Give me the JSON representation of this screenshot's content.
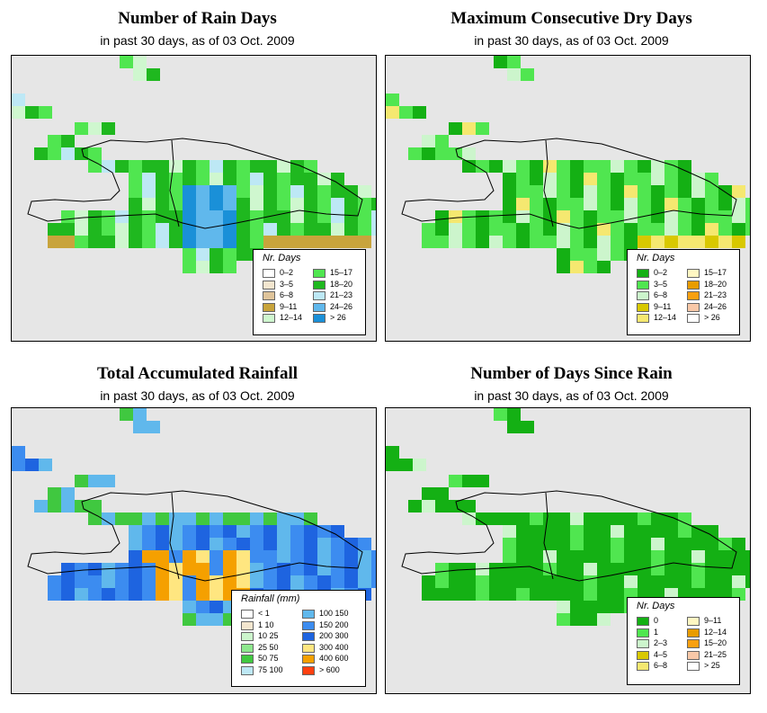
{
  "panels": [
    {
      "title": "Number of Rain Days",
      "subtitle": "in past 30 days, as of  03 Oct. 2009",
      "legend_title": "Nr. Days",
      "legend_items": [
        {
          "label": "0–2",
          "color": "#ffffff"
        },
        {
          "label": "3–5",
          "color": "#f3e6cf"
        },
        {
          "label": "6–8",
          "color": "#dfc49a"
        },
        {
          "label": "9–11",
          "color": "#c8a43c"
        },
        {
          "label": "12–14",
          "color": "#cff7cf"
        },
        {
          "label": "15–17",
          "color": "#50e650"
        },
        {
          "label": "18–20",
          "color": "#1fb81f"
        },
        {
          "label": "21–23",
          "color": "#bde8f5"
        },
        {
          "label": "24–26",
          "color": "#60b8ec"
        },
        {
          "label": "> 26",
          "color": "#1a90d8"
        }
      ]
    },
    {
      "title": "Maximum Consecutive Dry Days",
      "subtitle": "in past 30 days, as of  03 Oct. 2009",
      "legend_title": "Nr. Days",
      "legend_items": [
        {
          "label": "0–2",
          "color": "#14b014"
        },
        {
          "label": "3–5",
          "color": "#50e650"
        },
        {
          "label": "6–8",
          "color": "#ccf5cc"
        },
        {
          "label": "9–11",
          "color": "#d8c800"
        },
        {
          "label": "12–14",
          "color": "#f5e870"
        },
        {
          "label": "15–17",
          "color": "#fff7c2"
        },
        {
          "label": "18–20",
          "color": "#e89c00"
        },
        {
          "label": "21–23",
          "color": "#f8a010"
        },
        {
          "label": "24–26",
          "color": "#f8c8a8"
        },
        {
          "label": "> 26",
          "color": "#ffffff"
        }
      ]
    },
    {
      "title": "Total Accumulated Rainfall",
      "subtitle": "in past 30 days, as of  03 Oct. 2009",
      "legend_title": "Rainfall (mm)",
      "legend_items": [
        {
          "label": "< 1",
          "color": "#ffffff"
        },
        {
          "label": "1    10",
          "color": "#f3e6cf"
        },
        {
          "label": "10    25",
          "color": "#ccf5cc"
        },
        {
          "label": "25    50",
          "color": "#8ee88e"
        },
        {
          "label": "50    75",
          "color": "#40c840"
        },
        {
          "label": "75   100",
          "color": "#bde8f5"
        },
        {
          "label": "100   150",
          "color": "#60b8ec"
        },
        {
          "label": "150   200",
          "color": "#3c8cf0"
        },
        {
          "label": "200   300",
          "color": "#1e64e0"
        },
        {
          "label": "300   400",
          "color": "#ffe680"
        },
        {
          "label": "400   600",
          "color": "#f5a000"
        },
        {
          "label": "> 600",
          "color": "#ff4010"
        }
      ]
    },
    {
      "title": "Number of Days Since Rain",
      "subtitle": "in past 30 days, as of  03 Oct. 2009",
      "legend_title": "Nr. Days",
      "legend_items": [
        {
          "label": "0",
          "color": "#14b014"
        },
        {
          "label": "1",
          "color": "#50e650"
        },
        {
          "label": "2–3",
          "color": "#ccf5cc"
        },
        {
          "label": "4–5",
          "color": "#d8c800"
        },
        {
          "label": "6–8",
          "color": "#f5e870"
        },
        {
          "label": "9–11",
          "color": "#fff7c2"
        },
        {
          "label": "12–14",
          "color": "#e89c00"
        },
        {
          "label": "15–20",
          "color": "#f8a010"
        },
        {
          "label": "21–25",
          "color": "#f8c8a8"
        },
        {
          "label": "> 25",
          "color": "#ffffff"
        }
      ]
    }
  ]
}
